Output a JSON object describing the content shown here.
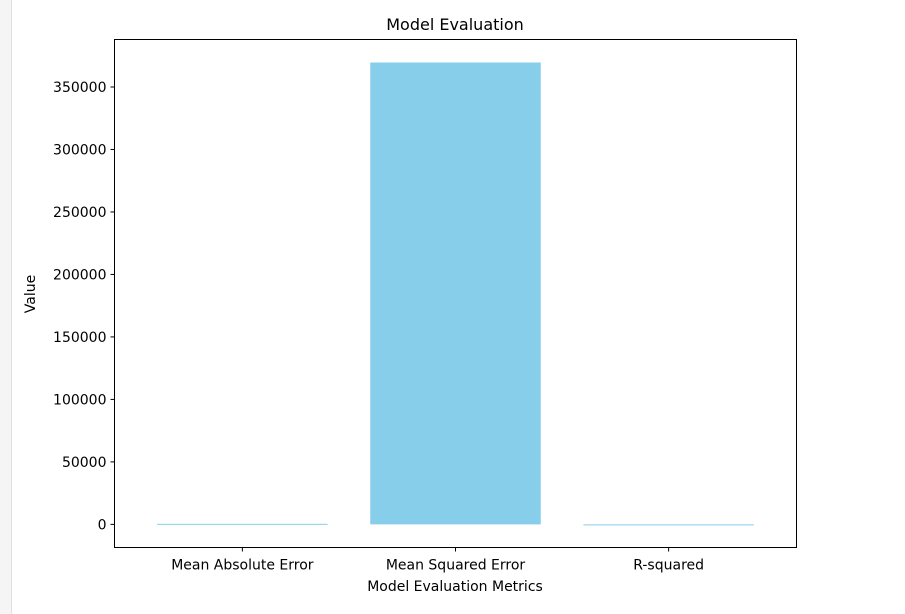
{
  "chart_data": {
    "type": "bar",
    "title": "Model Evaluation",
    "xlabel": "Model Evaluation Metrics",
    "ylabel": "Value",
    "categories": [
      "Mean Absolute Error",
      "Mean Squared Error",
      "R-squared"
    ],
    "values": [
      450,
      369600,
      -400
    ],
    "ylim": [
      -18500,
      388000
    ],
    "yticks": [
      0,
      50000,
      100000,
      150000,
      200000,
      250000,
      300000,
      350000
    ],
    "ytick_labels": [
      "0",
      "50000",
      "100000",
      "150000",
      "200000",
      "250000",
      "300000",
      "350000"
    ],
    "bar_color": "#87ceeb",
    "grid": false,
    "legend": "none"
  }
}
